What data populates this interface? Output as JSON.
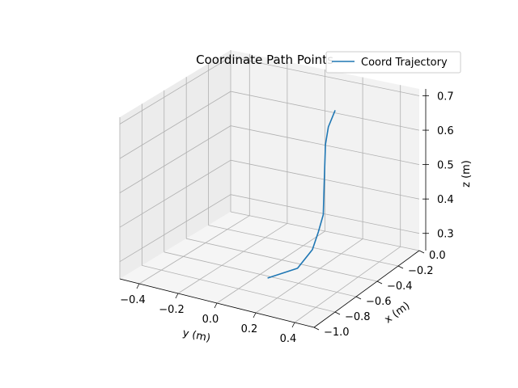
{
  "chart_data": {
    "type": "line3d",
    "title": "Coordinate Path Points",
    "xlabel": "x (m)",
    "ylabel": "y (m)",
    "zlabel": "z (m)",
    "xlim": [
      -1.0,
      0.0
    ],
    "ylim": [
      -0.5,
      0.5
    ],
    "zlim": [
      0.25,
      0.72
    ],
    "x_ticks": [
      -1.0,
      -0.8,
      -0.6,
      -0.4,
      -0.2,
      0.0
    ],
    "x_tick_labels": [
      "−1.0",
      "−0.8",
      "−0.6",
      "−0.4",
      "−0.2",
      "0.0"
    ],
    "y_ticks": [
      -0.4,
      -0.2,
      0.0,
      0.2,
      0.4
    ],
    "y_tick_labels": [
      "−0.4",
      "−0.2",
      "0.0",
      "0.2",
      "0.4"
    ],
    "z_ticks": [
      0.3,
      0.4,
      0.5,
      0.6,
      0.7
    ],
    "z_tick_labels": [
      "0.3",
      "0.4",
      "0.5",
      "0.6",
      "0.7"
    ],
    "grid": true,
    "legend_position": "top-right",
    "series": [
      {
        "name": "Coord Trajectory",
        "color": "#1f77b4",
        "x": [
          -0.62,
          -0.52,
          -0.47,
          -0.45,
          -0.44,
          -0.43,
          -0.42,
          -0.41,
          -0.4
        ],
        "y": [
          0.05,
          0.15,
          0.2,
          0.22,
          0.24,
          0.24,
          0.24,
          0.25,
          0.28
        ],
        "z": [
          0.25,
          0.27,
          0.32,
          0.37,
          0.42,
          0.52,
          0.62,
          0.67,
          0.72
        ]
      }
    ]
  }
}
